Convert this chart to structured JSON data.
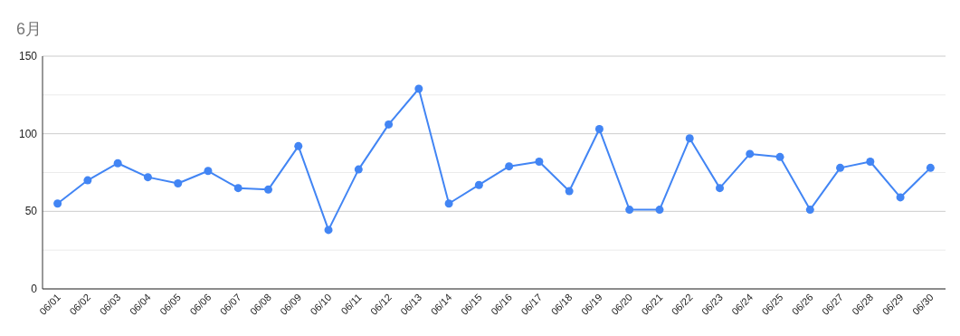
{
  "chart_data": {
    "type": "line",
    "title": "6月",
    "categories": [
      "06/01",
      "06/02",
      "06/03",
      "06/04",
      "06/05",
      "06/06",
      "06/07",
      "06/08",
      "06/09",
      "06/10",
      "06/11",
      "06/12",
      "06/13",
      "06/14",
      "06/15",
      "06/16",
      "06/17",
      "06/18",
      "06/19",
      "06/20",
      "06/21",
      "06/22",
      "06/23",
      "06/24",
      "06/25",
      "06/26",
      "06/27",
      "06/28",
      "06/29",
      "06/30"
    ],
    "series": [
      {
        "color": "#4285f4",
        "values": [
          55,
          70,
          81,
          72,
          68,
          76,
          65,
          64,
          92,
          38,
          77,
          106,
          129,
          55,
          67,
          79,
          82,
          63,
          103,
          51,
          51,
          97,
          65,
          87,
          85,
          51,
          78,
          82,
          59,
          78
        ]
      }
    ],
    "ylim": [
      0,
      150
    ],
    "yticks": [
      0,
      {
        "value": 25,
        "label": null
      },
      50,
      {
        "value": 75,
        "label": null
      },
      100,
      {
        "value": 125,
        "label": null
      },
      150
    ],
    "grid": "y",
    "marker": "circle",
    "line_style": "solid"
  }
}
